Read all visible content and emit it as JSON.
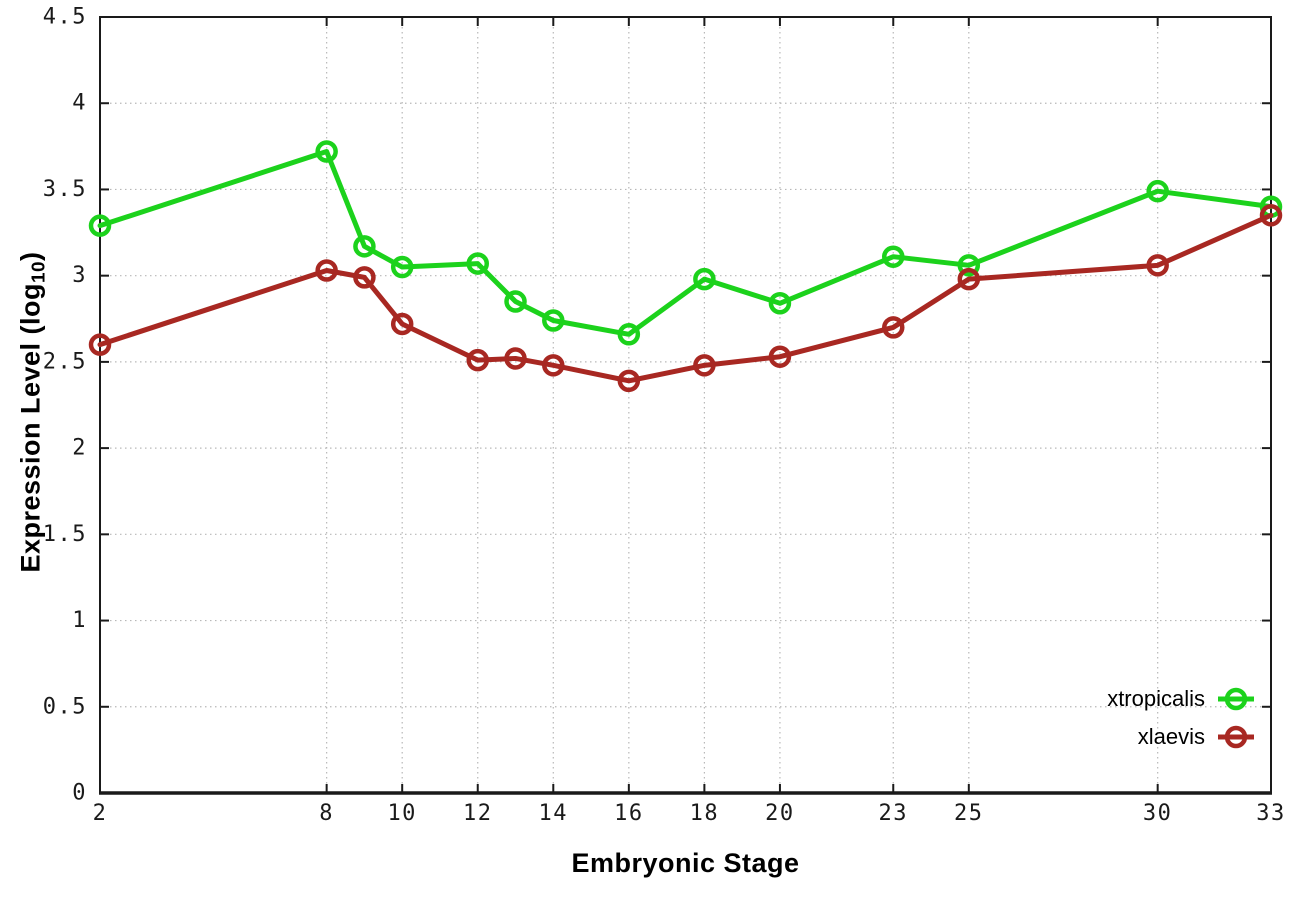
{
  "chart_data": {
    "type": "line",
    "title": "",
    "xlabel": "Embryonic Stage",
    "ylabel": "Expression Level (log10)",
    "ylabel_parts": {
      "pre": "Expression Level (log",
      "sub": "10",
      "post": ")"
    },
    "xlim": [
      2,
      33
    ],
    "ylim": [
      0,
      4.5
    ],
    "x_ticks": [
      2,
      8,
      10,
      12,
      14,
      16,
      18,
      20,
      23,
      25,
      30,
      33
    ],
    "x_tick_labels": [
      "2",
      "8",
      "10",
      "12",
      "14",
      "16",
      "18",
      "20",
      "23",
      "25",
      "30",
      "33"
    ],
    "y_ticks": [
      0,
      0.5,
      1,
      1.5,
      2,
      2.5,
      3,
      3.5,
      4,
      4.5
    ],
    "y_tick_labels": [
      "0",
      "0.5",
      "1",
      "1.5",
      "2",
      "2.5",
      "3",
      "3.5",
      "4",
      "4.5"
    ],
    "grid": true,
    "legend_position": "bottom-right-inside",
    "x": [
      2,
      8,
      9,
      10,
      12,
      13,
      14,
      16,
      18,
      20,
      23,
      25,
      30,
      33
    ],
    "series": [
      {
        "name": "xtropicalis",
        "color": "#1cd21c",
        "marker": "open-circle",
        "values": [
          3.29,
          3.72,
          3.17,
          3.05,
          3.07,
          2.85,
          2.74,
          2.66,
          2.98,
          2.84,
          3.11,
          3.06,
          3.49,
          3.4
        ]
      },
      {
        "name": "xlaevis",
        "color": "#a82822",
        "marker": "open-circle",
        "values": [
          2.6,
          3.03,
          2.99,
          2.72,
          2.51,
          2.52,
          2.48,
          2.39,
          2.48,
          2.53,
          2.7,
          2.98,
          3.06,
          3.35
        ]
      }
    ],
    "colors": {
      "grid": "#b8b8b8",
      "axis": "#1a1a1a",
      "background": "#ffffff"
    }
  }
}
